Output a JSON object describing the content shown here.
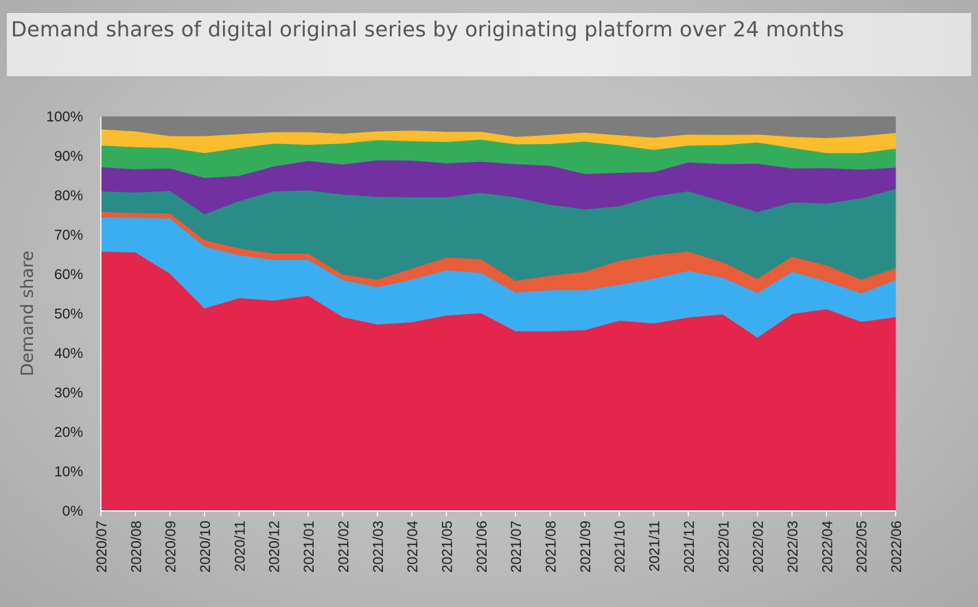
{
  "header": {
    "title": "Demand shares of digital original series by originating platform over 24 months"
  },
  "chart_data": {
    "type": "area",
    "stacked": true,
    "title": "Demand shares of digital original series by originating platform over 24 months",
    "xlabel": "",
    "ylabel": "Demand share",
    "ylim": [
      0,
      100
    ],
    "yticks": [
      "0%",
      "10%",
      "20%",
      "30%",
      "40%",
      "50%",
      "60%",
      "70%",
      "80%",
      "90%",
      "100%"
    ],
    "grid": false,
    "legend": "none",
    "categories": [
      "2020/07",
      "2020/08",
      "2020/09",
      "2020/10",
      "2020/11",
      "2020/12",
      "2021/01",
      "2021/02",
      "2021/03",
      "2021/04",
      "2021/05",
      "2021/06",
      "2021/07",
      "2021/08",
      "2021/09",
      "2021/10",
      "2021/11",
      "2021/12",
      "2022/01",
      "2022/02",
      "2022/03",
      "2022/04",
      "2022/05",
      "2022/06"
    ],
    "series": [
      {
        "color": "#e4264c",
        "values": [
          65.8,
          65.6,
          60.2,
          51.4,
          54.0,
          53.4,
          54.6,
          49.2,
          47.3,
          47.9,
          49.6,
          50.2,
          45.6,
          45.6,
          45.9,
          48.3,
          47.6,
          49.1,
          49.9,
          44.0,
          50.0,
          51.2,
          48.0,
          49.2
        ]
      },
      {
        "color": "#3aaef0",
        "values": [
          8.7,
          8.8,
          14.0,
          15.7,
          10.9,
          10.3,
          9.1,
          9.4,
          9.5,
          10.8,
          11.5,
          10.2,
          9.8,
          10.4,
          10.1,
          9.1,
          11.4,
          11.8,
          9.3,
          11.3,
          10.7,
          7.0,
          7.2,
          9.4
        ]
      },
      {
        "color": "#e85d3a",
        "values": [
          1.4,
          1.2,
          1.3,
          1.6,
          1.7,
          1.6,
          1.6,
          1.4,
          1.9,
          2.8,
          3.2,
          3.5,
          3.0,
          3.7,
          4.7,
          6.1,
          6.0,
          4.9,
          3.9,
          3.6,
          3.8,
          4.1,
          3.5,
          3.0
        ]
      },
      {
        "color": "#2a8c87",
        "values": [
          5.2,
          5.2,
          5.7,
          6.6,
          12.0,
          15.8,
          16.0,
          20.3,
          21.0,
          18.1,
          15.3,
          16.8,
          21.2,
          18.0,
          15.8,
          13.8,
          14.8,
          15.3,
          15.4,
          16.9,
          13.8,
          15.7,
          20.6,
          20.1
        ]
      },
      {
        "color": "#7231a0",
        "values": [
          6.1,
          5.9,
          5.7,
          9.2,
          6.4,
          6.3,
          7.5,
          7.6,
          9.3,
          9.3,
          8.6,
          7.9,
          8.4,
          9.9,
          9.0,
          8.5,
          6.2,
          7.3,
          9.5,
          12.3,
          8.6,
          9.0,
          7.3,
          5.4
        ]
      },
      {
        "color": "#33ad5c",
        "values": [
          5.5,
          5.6,
          5.2,
          6.3,
          7.1,
          5.8,
          4.1,
          5.3,
          5.1,
          4.9,
          5.4,
          5.6,
          5.0,
          5.5,
          8.2,
          7.0,
          5.6,
          4.3,
          4.8,
          5.4,
          5.2,
          3.8,
          4.2,
          4.8
        ]
      },
      {
        "color": "#fbbd2e",
        "values": [
          4.1,
          4.0,
          3.0,
          4.3,
          3.5,
          2.9,
          3.2,
          2.5,
          2.2,
          2.7,
          2.6,
          2.0,
          1.9,
          2.3,
          2.3,
          2.5,
          3.1,
          2.8,
          2.6,
          2.0,
          2.8,
          3.8,
          4.3,
          4.0
        ]
      },
      {
        "color": "#7d7d7d",
        "values": [
          3.2,
          3.7,
          4.9,
          4.9,
          4.4,
          3.9,
          3.9,
          4.3,
          3.7,
          3.5,
          3.8,
          3.8,
          5.1,
          4.6,
          4.0,
          4.7,
          5.3,
          4.5,
          4.6,
          4.5,
          5.1,
          5.4,
          4.9,
          4.1
        ]
      }
    ]
  }
}
